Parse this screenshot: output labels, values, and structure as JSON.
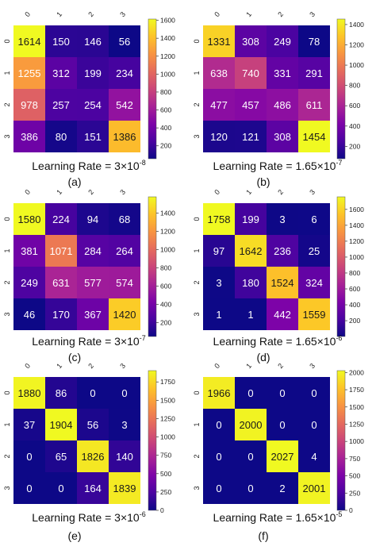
{
  "chart_data": [
    {
      "type": "heatmap",
      "x_tick_labels": [
        "0",
        "1",
        "2",
        "3"
      ],
      "y_tick_labels": [
        "0",
        "1",
        "2",
        "3"
      ],
      "values": [
        [
          1614,
          150,
          146,
          56
        ],
        [
          1255,
          312,
          199,
          234
        ],
        [
          978,
          257,
          254,
          542
        ],
        [
          386,
          80,
          151,
          1386
        ]
      ],
      "colorbar_ticks": [
        200,
        400,
        600,
        800,
        1000,
        1200,
        1400,
        1600
      ],
      "color_range": [
        56,
        1614
      ],
      "colormap": "plasma",
      "xlabel_prefix": "Learning Rate = 3×10",
      "xlabel_exp": "-8",
      "caption": "(a)"
    },
    {
      "type": "heatmap",
      "x_tick_labels": [
        "0",
        "1",
        "2",
        "3"
      ],
      "y_tick_labels": [
        "0",
        "1",
        "2",
        "3"
      ],
      "values": [
        [
          1331,
          308,
          249,
          78
        ],
        [
          638,
          740,
          331,
          291
        ],
        [
          477,
          457,
          486,
          611
        ],
        [
          120,
          121,
          308,
          1454
        ]
      ],
      "colorbar_ticks": [
        200,
        400,
        600,
        800,
        1000,
        1200,
        1400
      ],
      "color_range": [
        78,
        1454
      ],
      "colormap": "plasma",
      "xlabel_prefix": "Learning Rate = 1.65×10",
      "xlabel_exp": "-7",
      "caption": "(b)"
    },
    {
      "type": "heatmap",
      "x_tick_labels": [
        "0",
        "1",
        "2",
        "3"
      ],
      "y_tick_labels": [
        "0",
        "1",
        "2",
        "3"
      ],
      "values": [
        [
          1580,
          224,
          94,
          68
        ],
        [
          381,
          1071,
          284,
          264
        ],
        [
          249,
          631,
          577,
          574
        ],
        [
          46,
          170,
          367,
          1420
        ]
      ],
      "colorbar_ticks": [
        200,
        400,
        600,
        800,
        1000,
        1200,
        1400
      ],
      "color_range": [
        46,
        1580
      ],
      "colormap": "plasma",
      "xlabel_prefix": "Learning Rate = 3×10",
      "xlabel_exp": "-7",
      "caption": "(c)"
    },
    {
      "type": "heatmap",
      "x_tick_labels": [
        "0",
        "1",
        "2",
        "3"
      ],
      "y_tick_labels": [
        "0",
        "1",
        "2",
        "3"
      ],
      "values": [
        [
          1758,
          199,
          3,
          6
        ],
        [
          97,
          1642,
          236,
          25
        ],
        [
          3,
          180,
          1524,
          324
        ],
        [
          1,
          1,
          442,
          1559
        ]
      ],
      "colorbar_ticks": [
        200,
        400,
        600,
        800,
        1000,
        1200,
        1400,
        1600
      ],
      "color_range": [
        1,
        1758
      ],
      "colormap": "plasma",
      "xlabel_prefix": "Learning Rate = 1.65×10",
      "xlabel_exp": "-6",
      "caption": "(d)"
    },
    {
      "type": "heatmap",
      "x_tick_labels": [
        "0",
        "1",
        "2",
        "3"
      ],
      "y_tick_labels": [
        "0",
        "1",
        "2",
        "3"
      ],
      "values": [
        [
          1880,
          86,
          0,
          0
        ],
        [
          37,
          1904,
          56,
          3
        ],
        [
          0,
          65,
          1826,
          140
        ],
        [
          0,
          0,
          164,
          1839
        ]
      ],
      "colorbar_ticks": [
        0,
        250,
        500,
        750,
        1000,
        1250,
        1500,
        1750
      ],
      "color_range": [
        0,
        1904
      ],
      "colormap": "plasma",
      "xlabel_prefix": "Learning Rate = 3×10",
      "xlabel_exp": "-6",
      "caption": "(e)"
    },
    {
      "type": "heatmap",
      "x_tick_labels": [
        "0",
        "1",
        "2",
        "3"
      ],
      "y_tick_labels": [
        "0",
        "1",
        "2",
        "3"
      ],
      "values": [
        [
          1966,
          0,
          0,
          0
        ],
        [
          0,
          2000,
          0,
          0
        ],
        [
          0,
          0,
          2027,
          4
        ],
        [
          0,
          0,
          2,
          2001
        ]
      ],
      "colorbar_ticks": [
        0,
        250,
        500,
        750,
        1000,
        1250,
        1500,
        1750,
        2000
      ],
      "color_range": [
        0,
        2027
      ],
      "colormap": "plasma",
      "xlabel_prefix": "Learning Rate = 1.65×10",
      "xlabel_exp": "-5",
      "caption": "(f)"
    }
  ]
}
